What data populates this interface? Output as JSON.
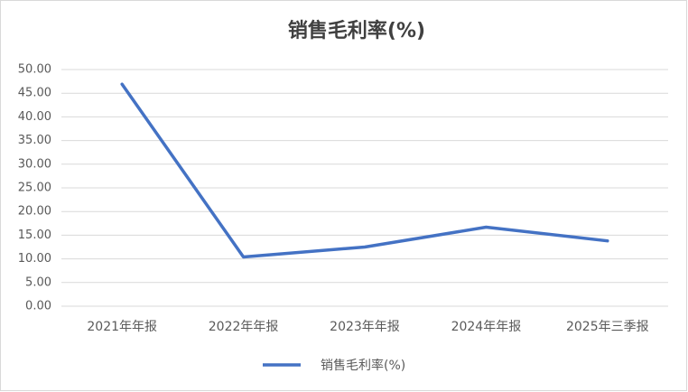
{
  "chart_data": {
    "type": "line",
    "title": "销售毛利率(%)",
    "categories": [
      "2021年年报",
      "2022年年报",
      "2023年年报",
      "2024年年报",
      "2025年三季报"
    ],
    "series": [
      {
        "name": "销售毛利率(%)",
        "color": "#4472c4",
        "values": [
          46.9,
          10.4,
          12.5,
          16.7,
          13.8
        ]
      }
    ],
    "ylim": [
      0,
      50
    ],
    "yticks": [
      {
        "value": 0,
        "label": "0.00"
      },
      {
        "value": 5,
        "label": "5.00"
      },
      {
        "value": 10,
        "label": "10.00"
      },
      {
        "value": 15,
        "label": "15.00"
      },
      {
        "value": 20,
        "label": "20.00"
      },
      {
        "value": 25,
        "label": "25.00"
      },
      {
        "value": 30,
        "label": "30.00"
      },
      {
        "value": 35,
        "label": "35.00"
      },
      {
        "value": 40,
        "label": "40.00"
      },
      {
        "value": 45,
        "label": "45.00"
      },
      {
        "value": 50,
        "label": "50.00"
      }
    ],
    "grid": true,
    "legend": "bottom"
  }
}
